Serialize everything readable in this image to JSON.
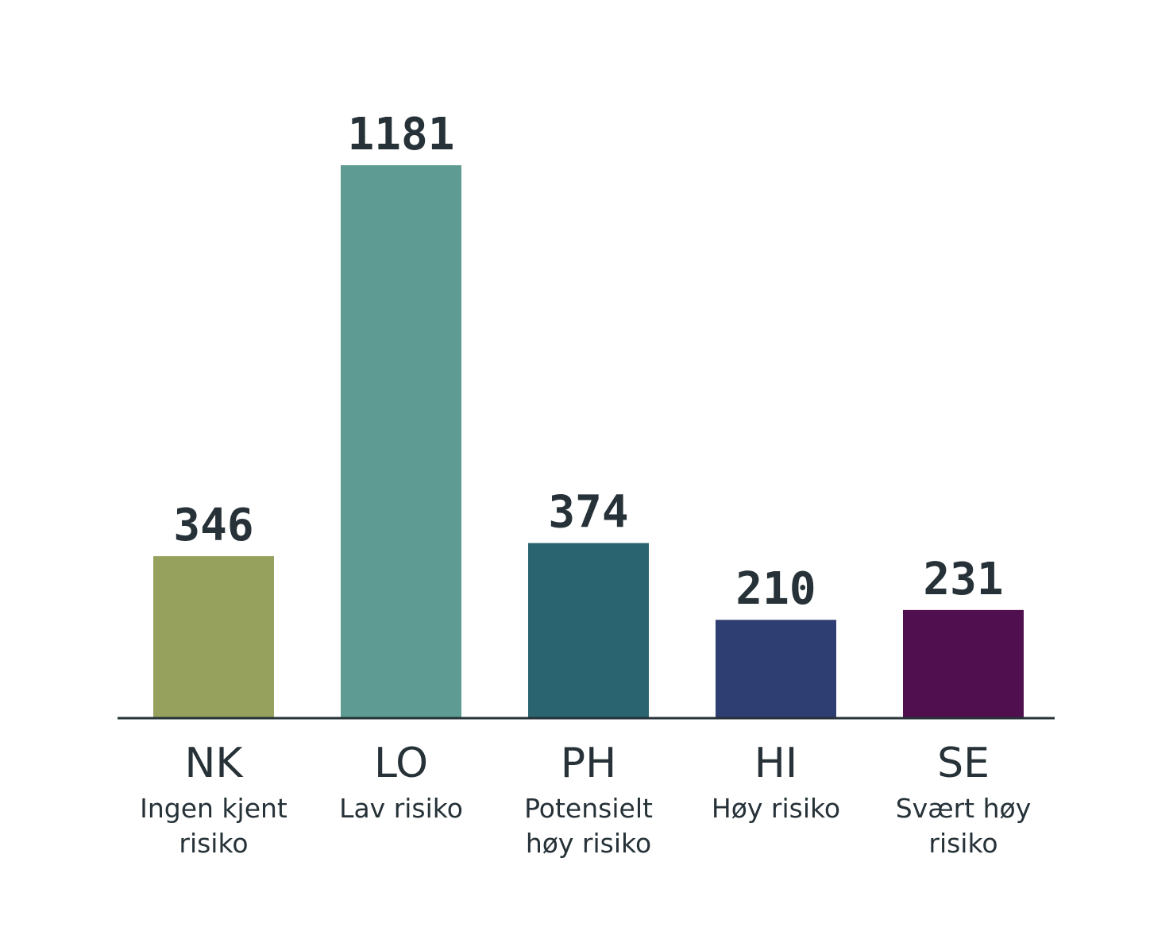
{
  "chart_data": {
    "type": "bar",
    "categories": [
      "NK",
      "LO",
      "PH",
      "HI",
      "SE"
    ],
    "descriptions": [
      "Ingen kjent\nrisiko",
      "Lav risiko",
      "Potensielt\nhøy risiko",
      "Høy risiko",
      "Svært høy\nrisiko"
    ],
    "values": [
      346,
      1181,
      374,
      210,
      231
    ],
    "colors": [
      "#96a15e",
      "#5e9c93",
      "#2a6470",
      "#2f3e72",
      "#50104f"
    ]
  }
}
